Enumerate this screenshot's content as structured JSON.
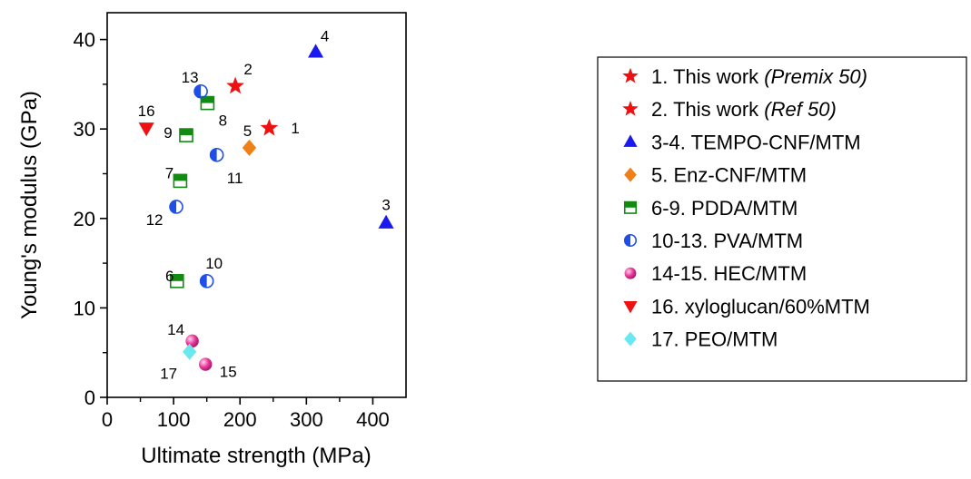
{
  "chart_data": {
    "type": "scatter",
    "xlabel": "Ultimate strength (MPa)",
    "ylabel": "Young's modulus (GPa)",
    "xlim": [
      0,
      450
    ],
    "ylim": [
      0,
      43
    ],
    "x_ticks": [
      "0",
      "100",
      "200",
      "300",
      "400"
    ],
    "y_ticks": [
      "0",
      "10",
      "20",
      "30",
      "40"
    ],
    "grid": false,
    "legend_position": "right",
    "series": [
      {
        "name": "1. This work",
        "name_italic": "(Premix 50)",
        "marker": "star",
        "color": "#ee1111",
        "points": [
          {
            "x": 244,
            "y": 30.1,
            "label": "1"
          }
        ]
      },
      {
        "name": "2. This work",
        "name_italic": "(Ref 50)",
        "marker": "star",
        "color": "#ee1111",
        "points": [
          {
            "x": 193,
            "y": 34.8,
            "label": "2"
          }
        ]
      },
      {
        "name": "3-4. TEMPO-CNF/MTM",
        "marker": "triangle-up",
        "color": "#1a1aee",
        "points": [
          {
            "x": 420,
            "y": 19.5,
            "label": "3"
          },
          {
            "x": 314,
            "y": 38.6,
            "label": "4"
          }
        ]
      },
      {
        "name": "5. Enz-CNF/MTM",
        "marker": "diamond",
        "color": "#f07f17",
        "points": [
          {
            "x": 214,
            "y": 27.9,
            "label": "5"
          }
        ]
      },
      {
        "name": "6-9. PDDA/MTM",
        "marker": "half-square",
        "color": "#138a13",
        "points": [
          {
            "x": 105,
            "y": 13.0,
            "label": "6"
          },
          {
            "x": 110,
            "y": 24.2,
            "label": "7"
          },
          {
            "x": 151,
            "y": 32.9,
            "label": "8"
          },
          {
            "x": 119,
            "y": 29.3,
            "label": "9"
          }
        ]
      },
      {
        "name": "10-13. PVA/MTM",
        "marker": "half-circle",
        "color": "#1f4fe6",
        "points": [
          {
            "x": 150,
            "y": 13.0,
            "label": "10"
          },
          {
            "x": 165,
            "y": 27.1,
            "label": "11"
          },
          {
            "x": 104,
            "y": 21.3,
            "label": "12"
          },
          {
            "x": 141,
            "y": 34.2,
            "label": "13"
          }
        ]
      },
      {
        "name": "14-15. HEC/MTM",
        "marker": "sphere",
        "color": "#e8389b",
        "points": [
          {
            "x": 128,
            "y": 6.3,
            "label": "14"
          },
          {
            "x": 148,
            "y": 3.7,
            "label": "15"
          }
        ]
      },
      {
        "name": "16. xyloglucan/60%MTM",
        "marker": "triangle-down",
        "color": "#ee1111",
        "points": [
          {
            "x": 59,
            "y": 30.1,
            "label": "16"
          }
        ]
      },
      {
        "name": "17. PEO/MTM",
        "marker": "diamond",
        "color": "#6ae8f0",
        "points": [
          {
            "x": 124,
            "y": 5.1,
            "label": "17"
          }
        ]
      }
    ]
  }
}
